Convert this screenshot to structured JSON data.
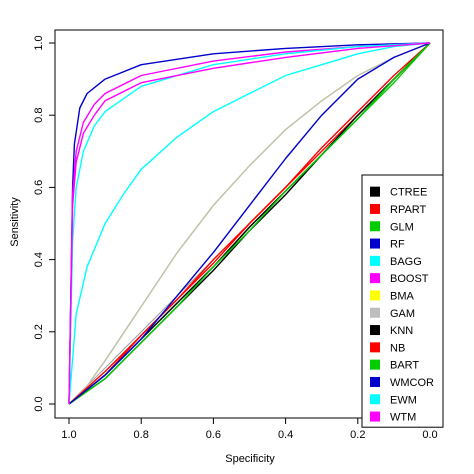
{
  "chart_data": {
    "type": "line",
    "title": "",
    "xlabel": "Specificity",
    "ylabel": "Sensitivity",
    "xlim": [
      1.0,
      0.0
    ],
    "ylim": [
      0.0,
      1.0
    ],
    "x_reversed": true,
    "grid": false,
    "legend_position": "bottom-right",
    "x_ticks": [
      "1.0",
      "0.8",
      "0.6",
      "0.4",
      "0.2",
      "0.0"
    ],
    "y_ticks": [
      "0.0",
      "0.2",
      "0.4",
      "0.6",
      "0.8",
      "1.0"
    ],
    "diagonal_reference": true,
    "series": [
      {
        "name": "CTREE",
        "color": "#000000",
        "points": [
          [
            1.0,
            0.0
          ],
          [
            0.9,
            0.07
          ],
          [
            0.8,
            0.17
          ],
          [
            0.7,
            0.27
          ],
          [
            0.6,
            0.37
          ],
          [
            0.5,
            0.48
          ],
          [
            0.4,
            0.58
          ],
          [
            0.3,
            0.69
          ],
          [
            0.2,
            0.79
          ],
          [
            0.1,
            0.9
          ],
          [
            0.0,
            1.0
          ]
        ]
      },
      {
        "name": "RPART",
        "color": "#ff0000",
        "points": [
          [
            1.0,
            0.0
          ],
          [
            0.9,
            0.08
          ],
          [
            0.8,
            0.19
          ],
          [
            0.7,
            0.29
          ],
          [
            0.6,
            0.39
          ],
          [
            0.5,
            0.5
          ],
          [
            0.4,
            0.6
          ],
          [
            0.3,
            0.7
          ],
          [
            0.2,
            0.8
          ],
          [
            0.1,
            0.9
          ],
          [
            0.0,
            1.0
          ]
        ]
      },
      {
        "name": "GLM",
        "color": "#00cc00",
        "points": [
          [
            1.0,
            0.0
          ],
          [
            0.9,
            0.08
          ],
          [
            0.8,
            0.18
          ],
          [
            0.7,
            0.28
          ],
          [
            0.6,
            0.38
          ],
          [
            0.5,
            0.49
          ],
          [
            0.4,
            0.59
          ],
          [
            0.3,
            0.69
          ],
          [
            0.2,
            0.79
          ],
          [
            0.1,
            0.89
          ],
          [
            0.0,
            1.0
          ]
        ]
      },
      {
        "name": "RF",
        "color": "#0000cc",
        "points": [
          [
            1.0,
            0.0
          ],
          [
            0.99,
            0.6
          ],
          [
            0.985,
            0.72
          ],
          [
            0.97,
            0.82
          ],
          [
            0.95,
            0.86
          ],
          [
            0.9,
            0.9
          ],
          [
            0.8,
            0.94
          ],
          [
            0.6,
            0.97
          ],
          [
            0.4,
            0.985
          ],
          [
            0.2,
            0.995
          ],
          [
            0.0,
            1.0
          ]
        ]
      },
      {
        "name": "BAGG",
        "color": "#00ffff",
        "points": [
          [
            1.0,
            0.0
          ],
          [
            0.98,
            0.25
          ],
          [
            0.95,
            0.38
          ],
          [
            0.9,
            0.5
          ],
          [
            0.85,
            0.58
          ],
          [
            0.8,
            0.65
          ],
          [
            0.7,
            0.74
          ],
          [
            0.6,
            0.81
          ],
          [
            0.5,
            0.86
          ],
          [
            0.4,
            0.91
          ],
          [
            0.3,
            0.94
          ],
          [
            0.2,
            0.97
          ],
          [
            0.1,
            0.99
          ],
          [
            0.0,
            1.0
          ]
        ]
      },
      {
        "name": "BOOST",
        "color": "#ff00ff",
        "points": [
          [
            1.0,
            0.0
          ],
          [
            0.99,
            0.58
          ],
          [
            0.98,
            0.7
          ],
          [
            0.96,
            0.78
          ],
          [
            0.93,
            0.83
          ],
          [
            0.9,
            0.86
          ],
          [
            0.8,
            0.91
          ],
          [
            0.6,
            0.95
          ],
          [
            0.4,
            0.975
          ],
          [
            0.2,
            0.99
          ],
          [
            0.0,
            1.0
          ]
        ]
      },
      {
        "name": "BMA",
        "color": "#ffff00",
        "points": [
          [
            1.0,
            0.0
          ],
          [
            0.95,
            0.05
          ],
          [
            0.9,
            0.12
          ],
          [
            0.8,
            0.27
          ],
          [
            0.7,
            0.42
          ],
          [
            0.6,
            0.55
          ],
          [
            0.5,
            0.66
          ],
          [
            0.4,
            0.76
          ],
          [
            0.3,
            0.84
          ],
          [
            0.2,
            0.91
          ],
          [
            0.1,
            0.96
          ],
          [
            0.0,
            1.0
          ]
        ]
      },
      {
        "name": "GAM",
        "color": "#bebebe",
        "points": [
          [
            1.0,
            0.0
          ],
          [
            0.95,
            0.05
          ],
          [
            0.9,
            0.12
          ],
          [
            0.8,
            0.27
          ],
          [
            0.7,
            0.42
          ],
          [
            0.6,
            0.55
          ],
          [
            0.5,
            0.66
          ],
          [
            0.4,
            0.76
          ],
          [
            0.3,
            0.84
          ],
          [
            0.2,
            0.91
          ],
          [
            0.1,
            0.96
          ],
          [
            0.0,
            1.0
          ]
        ]
      },
      {
        "name": "KNN",
        "color": "#000000",
        "points": [
          [
            1.0,
            0.0
          ],
          [
            0.9,
            0.08
          ],
          [
            0.8,
            0.18
          ],
          [
            0.7,
            0.28
          ],
          [
            0.6,
            0.38
          ],
          [
            0.5,
            0.49
          ],
          [
            0.4,
            0.59
          ],
          [
            0.3,
            0.69
          ],
          [
            0.2,
            0.8
          ],
          [
            0.1,
            0.9
          ],
          [
            0.0,
            1.0
          ]
        ]
      },
      {
        "name": "NB",
        "color": "#ff0000",
        "points": [
          [
            1.0,
            0.0
          ],
          [
            0.9,
            0.09
          ],
          [
            0.8,
            0.19
          ],
          [
            0.7,
            0.29
          ],
          [
            0.6,
            0.4
          ],
          [
            0.5,
            0.5
          ],
          [
            0.4,
            0.6
          ],
          [
            0.3,
            0.71
          ],
          [
            0.2,
            0.81
          ],
          [
            0.1,
            0.91
          ],
          [
            0.0,
            1.0
          ]
        ]
      },
      {
        "name": "BART",
        "color": "#00cc00",
        "points": [
          [
            1.0,
            0.0
          ],
          [
            0.9,
            0.07
          ],
          [
            0.8,
            0.17
          ],
          [
            0.7,
            0.27
          ],
          [
            0.6,
            0.38
          ],
          [
            0.5,
            0.48
          ],
          [
            0.4,
            0.59
          ],
          [
            0.3,
            0.69
          ],
          [
            0.2,
            0.79
          ],
          [
            0.1,
            0.9
          ],
          [
            0.0,
            1.0
          ]
        ]
      },
      {
        "name": "WMCOR",
        "color": "#0000cc",
        "points": [
          [
            1.0,
            0.0
          ],
          [
            0.95,
            0.04
          ],
          [
            0.9,
            0.08
          ],
          [
            0.8,
            0.18
          ],
          [
            0.7,
            0.3
          ],
          [
            0.6,
            0.42
          ],
          [
            0.5,
            0.55
          ],
          [
            0.4,
            0.68
          ],
          [
            0.3,
            0.8
          ],
          [
            0.2,
            0.9
          ],
          [
            0.1,
            0.96
          ],
          [
            0.0,
            1.0
          ]
        ]
      },
      {
        "name": "EWM",
        "color": "#00ffff",
        "points": [
          [
            1.0,
            0.0
          ],
          [
            0.99,
            0.45
          ],
          [
            0.98,
            0.6
          ],
          [
            0.96,
            0.7
          ],
          [
            0.93,
            0.77
          ],
          [
            0.9,
            0.81
          ],
          [
            0.8,
            0.88
          ],
          [
            0.6,
            0.94
          ],
          [
            0.4,
            0.97
          ],
          [
            0.2,
            0.99
          ],
          [
            0.0,
            1.0
          ]
        ]
      },
      {
        "name": "WTM",
        "color": "#ff00ff",
        "points": [
          [
            1.0,
            0.0
          ],
          [
            0.99,
            0.55
          ],
          [
            0.98,
            0.67
          ],
          [
            0.96,
            0.75
          ],
          [
            0.93,
            0.8
          ],
          [
            0.9,
            0.84
          ],
          [
            0.8,
            0.89
          ],
          [
            0.6,
            0.93
          ],
          [
            0.4,
            0.96
          ],
          [
            0.2,
            0.985
          ],
          [
            0.0,
            1.0
          ]
        ]
      }
    ]
  }
}
